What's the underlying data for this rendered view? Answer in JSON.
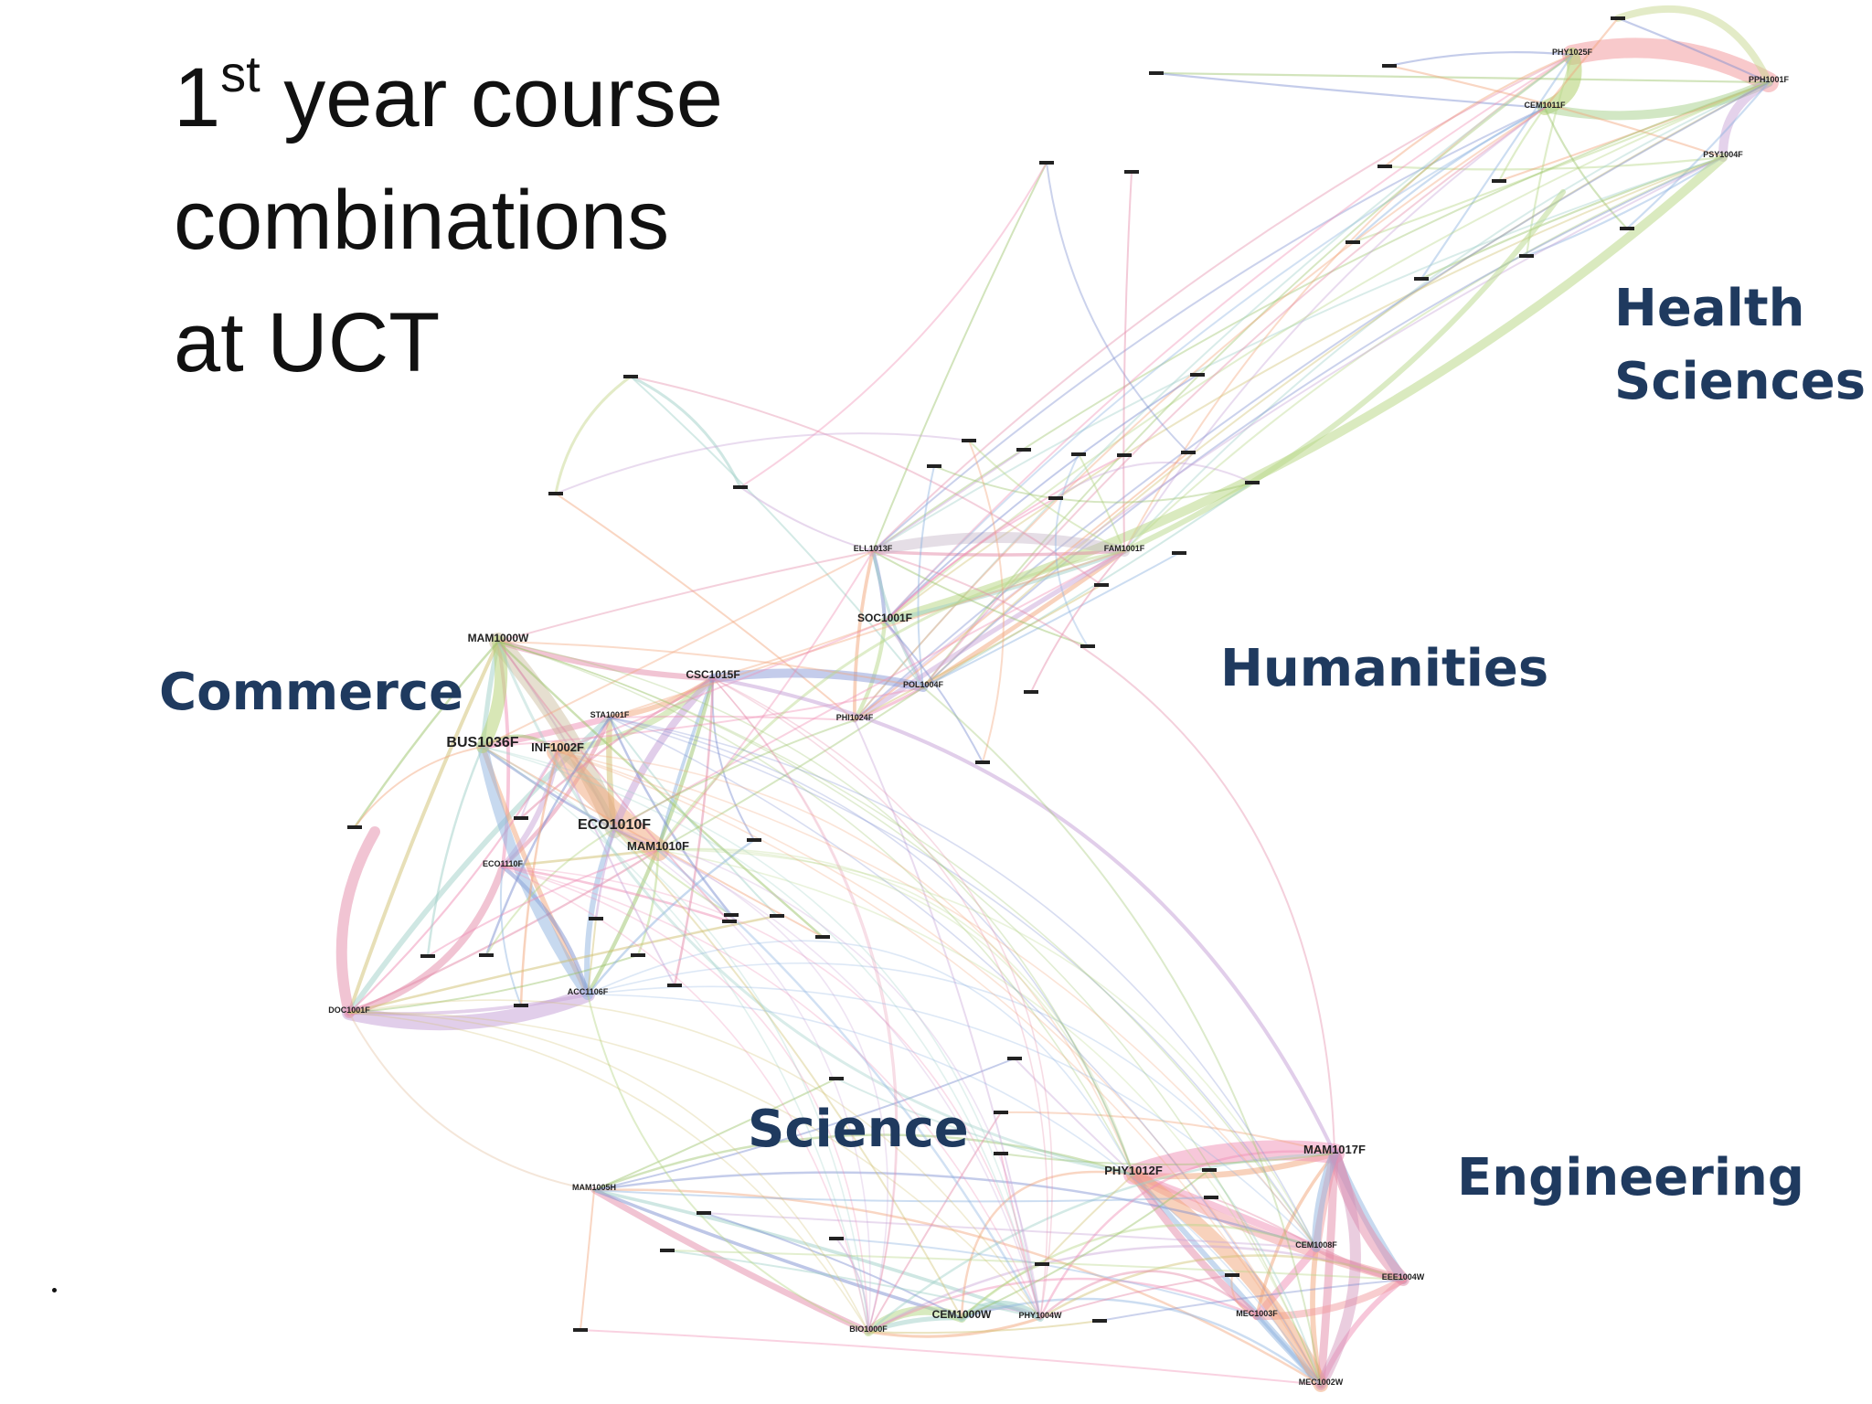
{
  "title": {
    "number": "1",
    "superscript": "st",
    "line1_rest": " year course",
    "line2": "combinations",
    "line3": "at UCT"
  },
  "faculties": {
    "health_line1": "Health",
    "health_line2": "Sciences",
    "humanities": "Humanities",
    "commerce": "Commerce",
    "science": "Science",
    "engineering": "Engineering"
  },
  "colors": {
    "faculty_label": "#1f3a5f",
    "title_text": "#111111"
  },
  "nodes": [
    {
      "id": "PPH1001F",
      "cluster": "health",
      "label": "PPH1001F"
    },
    {
      "id": "PHY1025F",
      "cluster": "health",
      "label": "PHY1025F"
    },
    {
      "id": "CEM1011F",
      "cluster": "health",
      "label": "CEM1011F"
    },
    {
      "id": "PSY1004F",
      "cluster": "health",
      "label": "PSY1004F"
    },
    {
      "id": "ELL1013F",
      "cluster": "humanities",
      "label": "ELL1013F"
    },
    {
      "id": "FAM1001F",
      "cluster": "humanities",
      "label": "FAM1001F"
    },
    {
      "id": "SOC1001F",
      "cluster": "humanities",
      "label": "SOC1001F"
    },
    {
      "id": "POL1004F",
      "cluster": "humanities",
      "label": "POL1004F"
    },
    {
      "id": "PHI1024F",
      "cluster": "humanities",
      "label": "PHI1024F"
    },
    {
      "id": "MAM1000W",
      "cluster": "commerce",
      "label": "MAM1000W"
    },
    {
      "id": "CSC1015F",
      "cluster": "commerce",
      "label": "CSC1015F"
    },
    {
      "id": "STA1001F",
      "cluster": "commerce",
      "label": "STA1001F"
    },
    {
      "id": "BUS1036F",
      "cluster": "commerce",
      "label": "BUS1036F"
    },
    {
      "id": "INF1002F",
      "cluster": "commerce",
      "label": "INF1002F"
    },
    {
      "id": "ECO1010F",
      "cluster": "commerce",
      "label": "ECO1010F"
    },
    {
      "id": "MAM1010F",
      "cluster": "commerce",
      "label": "MAM1010F"
    },
    {
      "id": "ECO1110F",
      "cluster": "commerce",
      "label": "ECO1110F"
    },
    {
      "id": "ACC1106F",
      "cluster": "commerce",
      "label": "ACC1106F"
    },
    {
      "id": "DOC1001F",
      "cluster": "commerce",
      "label": "DOC1001F"
    },
    {
      "id": "MAM1005H",
      "cluster": "science",
      "label": "MAM1005H"
    },
    {
      "id": "BIO1000F",
      "cluster": "science",
      "label": "BIO1000F"
    },
    {
      "id": "CEM1000W",
      "cluster": "science",
      "label": "CEM1000W"
    },
    {
      "id": "PHY1004W",
      "cluster": "science",
      "label": "PHY1004W"
    },
    {
      "id": "PHY1012F",
      "cluster": "engineering",
      "label": "PHY1012F"
    },
    {
      "id": "MAM1017F",
      "cluster": "engineering",
      "label": "MAM1017F"
    },
    {
      "id": "CEM1008F",
      "cluster": "engineering",
      "label": "CEM1008F"
    },
    {
      "id": "EEE1004W",
      "cluster": "engineering",
      "label": "EEE1004W"
    },
    {
      "id": "MEC1002W",
      "cluster": "engineering",
      "label": "MEC1002W"
    },
    {
      "id": "MEC1003F",
      "cluster": "engineering",
      "label": "MEC1003F"
    }
  ]
}
